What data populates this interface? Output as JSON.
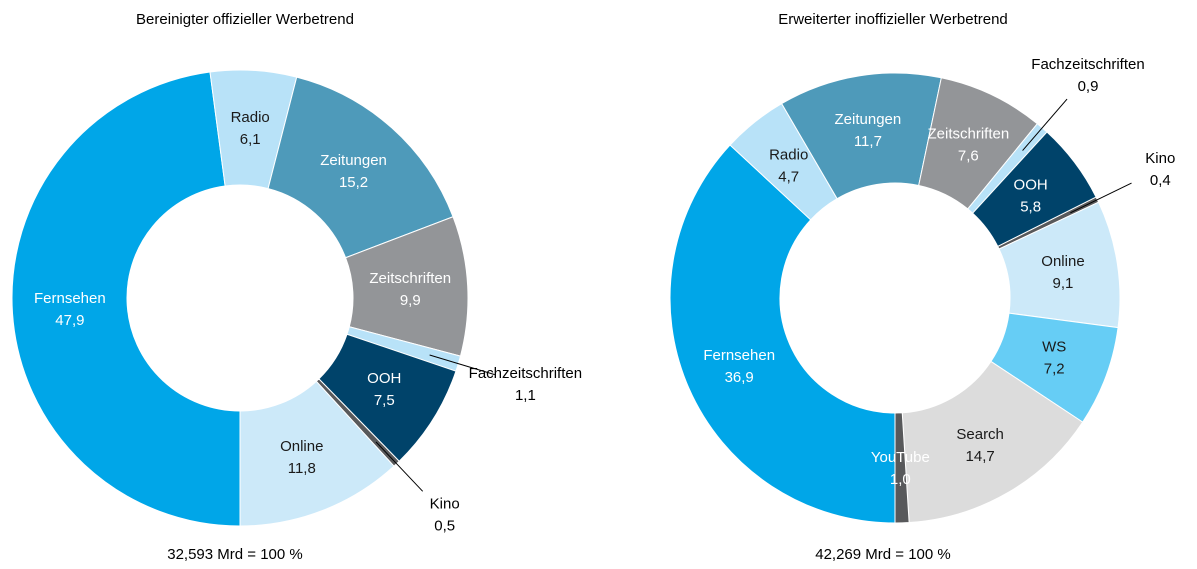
{
  "chart_data": [
    {
      "type": "pie",
      "title": "Bereinigter offizieller Werbetrend",
      "categories": [
        "Fernsehen",
        "Radio",
        "Zeitungen",
        "Zeitschriften",
        "Fachzeitschriften",
        "OOH",
        "Kino",
        "Online"
      ],
      "values": [
        47.9,
        6.1,
        15.2,
        9.9,
        1.1,
        7.5,
        0.5,
        11.8
      ],
      "value_labels": [
        "47,9",
        "6,1",
        "15,2",
        "9,9",
        "1,1",
        "7,5",
        "0,5",
        "11,8"
      ],
      "colors": [
        "#00a6e8",
        "#b8e2f8",
        "#4e9aba",
        "#939598",
        "#b8e2f8",
        "#00436a",
        "#58595b",
        "#cce9f9"
      ],
      "note": "32,593 Mrd = 100 %"
    },
    {
      "type": "pie",
      "title": "Erweiterter inoffizieller Werbetrend",
      "categories": [
        "Fernsehen",
        "Radio",
        "Zeitungen",
        "Zeitschriften",
        "Fachzeitschriften",
        "OOH",
        "Kino",
        "Online",
        "WS",
        "Search",
        "YouTube"
      ],
      "values": [
        36.9,
        4.7,
        11.7,
        7.6,
        0.9,
        5.8,
        0.4,
        9.1,
        7.2,
        14.7,
        1.0
      ],
      "value_labels": [
        "36,9",
        "4,7",
        "11,7",
        "7,6",
        "0,9",
        "5,8",
        "0,4",
        "9,1",
        "7,2",
        "14,7",
        "1,0"
      ],
      "colors": [
        "#00a6e8",
        "#b8e2f8",
        "#4e9aba",
        "#939598",
        "#b8e2f8",
        "#00436a",
        "#58595b",
        "#cce9f9",
        "#66cdf5",
        "#dcdcdc",
        "#58595b"
      ],
      "note": "42,269 Mrd = 100 %"
    }
  ]
}
